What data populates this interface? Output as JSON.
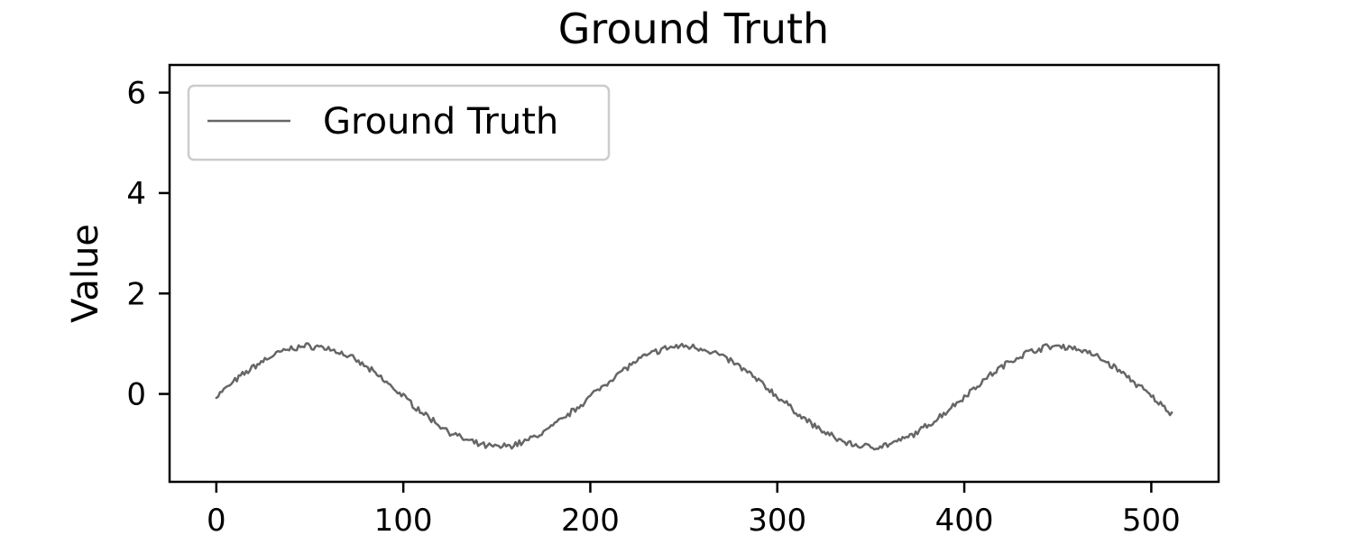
{
  "chart_data": {
    "type": "line",
    "title": "Ground Truth",
    "xlabel": "",
    "ylabel": "Value",
    "xlim": [
      -25,
      536
    ],
    "ylim": [
      -1.75,
      6.55
    ],
    "xticks": [
      0,
      100,
      200,
      300,
      400,
      500
    ],
    "yticks": [
      0,
      2,
      4,
      6
    ],
    "grid": false,
    "legend": {
      "placement": "upper-left"
    },
    "series": [
      {
        "name": "Ground Truth",
        "color": "#666666",
        "x_start": 0,
        "x_end": 511,
        "amplitude": 1.0,
        "period": 200,
        "phase_offset": 0,
        "noise": 0.05
      }
    ]
  }
}
